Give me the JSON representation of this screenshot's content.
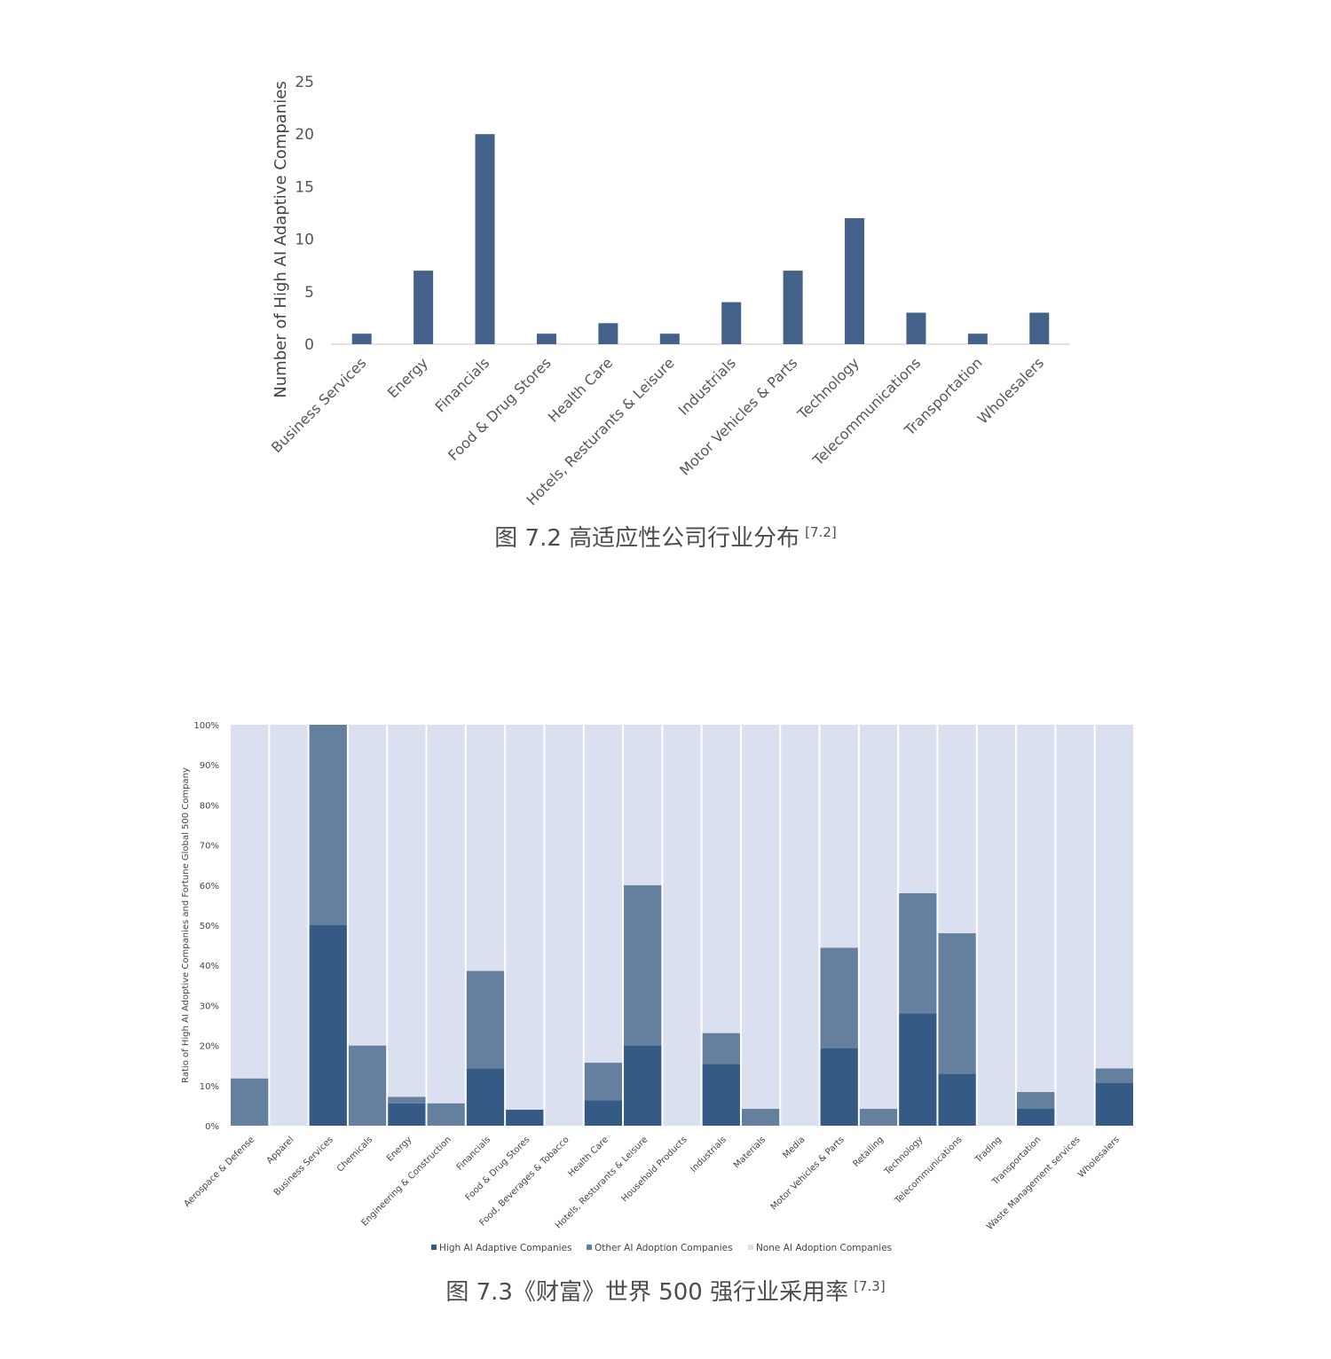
{
  "chart_data": [
    {
      "type": "bar",
      "ylabel": "Number of High AI Adaptive Companies",
      "ylim": [
        0,
        25
      ],
      "yticks": [
        "0",
        "5",
        "10",
        "15",
        "20",
        "25"
      ],
      "categories": [
        "Business Services",
        "Energy",
        "Financials",
        "Food & Drug Stores",
        "Health Care",
        "Hotels, Resturants & Leisure",
        "Industrials",
        "Motor Vehicles & Parts",
        "Technology",
        "Telecommunications",
        "Transportation",
        "Wholesalers"
      ],
      "values": [
        1,
        7,
        20,
        1,
        2,
        1,
        4,
        7,
        12,
        3,
        1,
        3
      ],
      "grid": false,
      "color": "#44618a"
    },
    {
      "type": "bar",
      "stacked": true,
      "ylabel": "Ratio of High AI Adoptive Companies and Fortune Global 500 Company",
      "ylim": [
        0,
        100
      ],
      "yticks": [
        "0%",
        "10%",
        "20%",
        "30%",
        "40%",
        "50%",
        "60%",
        "70%",
        "80%",
        "90%",
        "100%"
      ],
      "categories": [
        "Aerospace & Defense",
        "Apparel",
        "Business Services",
        "Chemicals",
        "Energy",
        "Engineering & Construction",
        "Financials",
        "Food & Drug Stores",
        "Food, Beverages & Tobacco",
        "Health Care",
        "Hotels, Resturants & Leisure",
        "Household Products",
        "Industrials",
        "Materials",
        "Media",
        "Motor Vehicles & Parts",
        "Retailing",
        "Technology",
        "Telecommunications",
        "Trading",
        "Transportation",
        "Waste Management services",
        "Wholesalers"
      ],
      "series": [
        {
          "name": "High AI Adaptive Companies",
          "color": "#345a85",
          "values": [
            0,
            0,
            50,
            0,
            5.6,
            0,
            14.3,
            4,
            0,
            6.3,
            20,
            0,
            15.4,
            0,
            0,
            19.4,
            0,
            28,
            13,
            0,
            4.2,
            0,
            10.7
          ]
        },
        {
          "name": "Other AI Adoption Companies",
          "color": "#657f9e",
          "values": [
            11.8,
            0,
            50,
            20,
            1.6,
            5.6,
            24.3,
            0,
            0,
            9.4,
            40,
            0,
            7.7,
            4.2,
            0,
            25,
            4.2,
            30,
            35,
            0,
            4.2,
            0,
            3.6
          ]
        },
        {
          "name": "None AI Adoption Companies",
          "color": "#dbe0f1",
          "values": [
            88.2,
            100,
            0,
            80,
            92.8,
            94.4,
            61.4,
            96,
            100,
            84.3,
            40,
            100,
            76.9,
            95.8,
            100,
            55.6,
            95.8,
            42,
            52,
            100,
            91.6,
            100,
            85.7
          ]
        }
      ],
      "legend": "bottom"
    }
  ],
  "captions": {
    "fig72": "图 7.2 高适应性公司行业分布",
    "fig72_ref": "[7.2]",
    "fig73": "图 7.3《财富》世界 500 强行业采用率",
    "fig73_ref": "[7.3]"
  }
}
